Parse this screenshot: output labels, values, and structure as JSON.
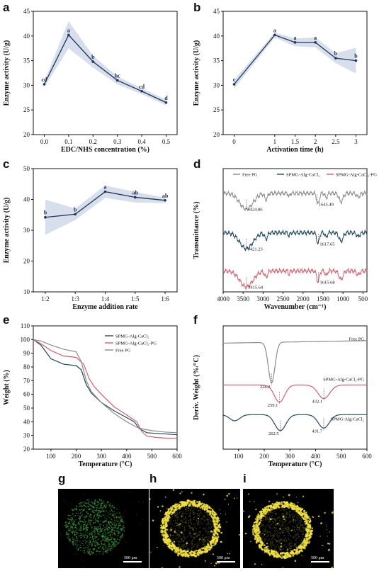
{
  "panel_labels": [
    "a",
    "b",
    "c",
    "d",
    "e",
    "f",
    "g",
    "h",
    "i"
  ],
  "colors": {
    "enzyme_line": "#1f3556",
    "enzyme_band": "#c9d3e6",
    "free_pg": "#8c8c8c",
    "spmg_alg_cacl2": "#1e4a5e",
    "spmg_alg_cacl2_pg": "#d9606b",
    "micro_green": "#3ba33a",
    "micro_yellow": "#f2e23a"
  },
  "chart_data": [
    {
      "id": "a",
      "type": "line",
      "xlabel": "EDC/NHS concentration (%)",
      "ylabel": "Enzyme activity (U/g)",
      "x": [
        0.0,
        0.1,
        0.2,
        0.3,
        0.4,
        0.5
      ],
      "x_ticks": [
        "0.0",
        "0.1",
        "0.2",
        "0.3",
        "0.4",
        "0.5"
      ],
      "xlim": [
        -0.045,
        0.545
      ],
      "y": [
        30.2,
        40.2,
        34.8,
        31.0,
        28.8,
        26.5
      ],
      "band_low": [
        29.6,
        37.5,
        33.6,
        30.2,
        28.2,
        25.9
      ],
      "band_high": [
        30.8,
        43.0,
        36.0,
        31.8,
        29.4,
        27.1
      ],
      "letters": [
        "cd",
        "a",
        "b",
        "bc",
        "cd",
        "d"
      ],
      "ylim": [
        20,
        45
      ],
      "y_ticks": [
        "20",
        "25",
        "30",
        "35",
        "40",
        "45"
      ]
    },
    {
      "id": "b",
      "type": "line",
      "xlabel": "Activation time (h)",
      "ylabel": "Enzyme activity (U/g)",
      "x": [
        0,
        1,
        1.5,
        2,
        2.5,
        3
      ],
      "x_ticks": [
        "0",
        "1",
        "1.5",
        "2",
        "2.5",
        "3"
      ],
      "xlim": [
        -0.27,
        3.27
      ],
      "y": [
        30.2,
        40.2,
        38.7,
        38.7,
        35.5,
        35.0
      ],
      "band_low": [
        29.3,
        39.7,
        37.9,
        37.7,
        34.5,
        32.4
      ],
      "band_high": [
        31.1,
        40.7,
        39.5,
        39.7,
        36.5,
        37.6
      ],
      "letters": [
        "c",
        "a",
        "a",
        "a",
        "b",
        "b"
      ],
      "ylim": [
        20,
        45
      ],
      "y_ticks": [
        "20",
        "25",
        "30",
        "35",
        "40",
        "45"
      ]
    },
    {
      "id": "c",
      "type": "line",
      "xlabel": "Enzyme addition rate",
      "ylabel": "Enzyme activity (U/g)",
      "x": [
        1,
        2,
        3,
        4,
        5
      ],
      "x_ticks": [
        "1:2",
        "1:3",
        "1:4",
        "1:5",
        "1:6"
      ],
      "xlim": [
        0.6,
        5.4
      ],
      "y": [
        34.2,
        35.2,
        42.5,
        40.7,
        39.7
      ],
      "band_low": [
        28.5,
        33.3,
        40.5,
        39.0,
        38.8
      ],
      "band_high": [
        39.9,
        37.1,
        44.5,
        42.4,
        40.6
      ],
      "letters": [
        "b",
        "b",
        "a",
        "ab",
        "ab"
      ],
      "ylim": [
        10,
        50
      ],
      "y_ticks": [
        "10",
        "20",
        "30",
        "40",
        "50"
      ]
    },
    {
      "id": "d",
      "type": "line",
      "xlabel": "Wavenumber (cm⁻¹)",
      "ylabel": "Transmittance (%)",
      "xlim": [
        4000,
        400
      ],
      "x_ticks": [
        "4000",
        "3500",
        "3000",
        "2500",
        "2000",
        "1500",
        "1000",
        "500"
      ],
      "x_tick_values": [
        4000,
        3500,
        3000,
        2500,
        2000,
        1500,
        1000,
        500
      ],
      "legend": [
        "Free PG",
        "SPMG-Alg-CaCl₂",
        "SPMG-Alg-CaCl₂-PG"
      ],
      "series": [
        {
          "name": "Free PG",
          "offset": 0.8,
          "peaks": [
            {
              "at": 3424.86,
              "label": "3424.86"
            },
            {
              "at": 1645.49,
              "label": "1645.49"
            }
          ]
        },
        {
          "name": "SPMG-Alg-CaCl₂",
          "offset": 0.48,
          "peaks": [
            {
              "at": 3421.23,
              "label": "3421.23"
            },
            {
              "at": 1617.65,
              "label": "1617.65"
            }
          ]
        },
        {
          "name": "SPMG-Alg-CaCl₂-PG",
          "offset": 0.17,
          "peaks": [
            {
              "at": 3415.64,
              "label": "3415.64"
            },
            {
              "at": 1615.68,
              "label": "1615.68"
            }
          ]
        }
      ]
    },
    {
      "id": "e",
      "type": "line",
      "xlabel": "Temperature (°C)",
      "ylabel": "Weight (%)",
      "xlim": [
        30,
        600
      ],
      "x_ticks": [
        "100",
        "200",
        "300",
        "400",
        "500",
        "600"
      ],
      "x_tick_values": [
        100,
        200,
        300,
        400,
        500,
        600
      ],
      "ylim": [
        20,
        110
      ],
      "y_ticks": [
        "20",
        "30",
        "40",
        "50",
        "60",
        "70",
        "80",
        "90",
        "100",
        "110"
      ],
      "legend": [
        "SPMG-Alg-CaCl₂",
        "SPMG-Alg-CaCl₂-PG",
        "Free PG"
      ],
      "series": [
        {
          "name": "SPMG-Alg-CaCl₂",
          "x": [
            30,
            60,
            100,
            150,
            200,
            220,
            240,
            260,
            300,
            350,
            400,
            430,
            450,
            480,
            520,
            560,
            600
          ],
          "y": [
            100,
            96,
            86,
            82,
            81,
            78,
            67,
            61,
            54,
            48,
            43,
            40,
            35,
            32,
            31.5,
            31,
            30.5
          ]
        },
        {
          "name": "SPMG-Alg-CaCl₂-PG",
          "x": [
            30,
            60,
            100,
            150,
            200,
            230,
            250,
            270,
            300,
            350,
            400,
            440,
            460,
            480,
            520,
            560,
            600
          ],
          "y": [
            100,
            97,
            92,
            88,
            87,
            82,
            72,
            66,
            60,
            51,
            45,
            40,
            33,
            29.5,
            28.5,
            28,
            28
          ]
        },
        {
          "name": "Free PG",
          "x": [
            30,
            60,
            100,
            150,
            200,
            220,
            240,
            260,
            300,
            350,
            400,
            440,
            470,
            500,
            550,
            600
          ],
          "y": [
            100,
            99,
            96,
            93,
            91,
            84,
            70,
            62,
            54,
            46,
            40,
            36,
            34.5,
            33.5,
            32.5,
            32
          ]
        }
      ]
    },
    {
      "id": "f",
      "type": "line",
      "xlabel": "Temperature (°C)",
      "ylabel": "Deriv. Weight (%/°C)",
      "xlim": [
        40,
        600
      ],
      "x_ticks": [
        "100",
        "200",
        "300",
        "400",
        "500",
        "600"
      ],
      "x_tick_values": [
        100,
        200,
        300,
        400,
        500,
        600
      ],
      "series": [
        {
          "name": "Free PG",
          "offset": 0.86,
          "peaks": [
            {
              "at": 228.8,
              "label": "228.8",
              "depth": 0.33
            }
          ]
        },
        {
          "name": "SPMG-Alg-CaCl₂-PG",
          "offset": 0.52,
          "peaks": [
            {
              "at": 259.1,
              "label": "259.1",
              "depth": 0.14
            },
            {
              "at": 432.1,
              "label": "432.1",
              "depth": 0.11
            }
          ]
        },
        {
          "name": "SPMG-Alg-CaCl₂",
          "offset": 0.28,
          "peaks": [
            {
              "at": 262.5,
              "label": "262.5",
              "depth": 0.13
            },
            {
              "at": 431.7,
              "label": "431.7",
              "depth": 0.11
            }
          ]
        }
      ]
    }
  ],
  "micrographs": [
    {
      "id": "g",
      "scale_label": "500 μm",
      "color": "green"
    },
    {
      "id": "h",
      "scale_label": "500 μm",
      "color": "yellow"
    },
    {
      "id": "i",
      "scale_label": "500 μm",
      "color": "yellow"
    }
  ]
}
